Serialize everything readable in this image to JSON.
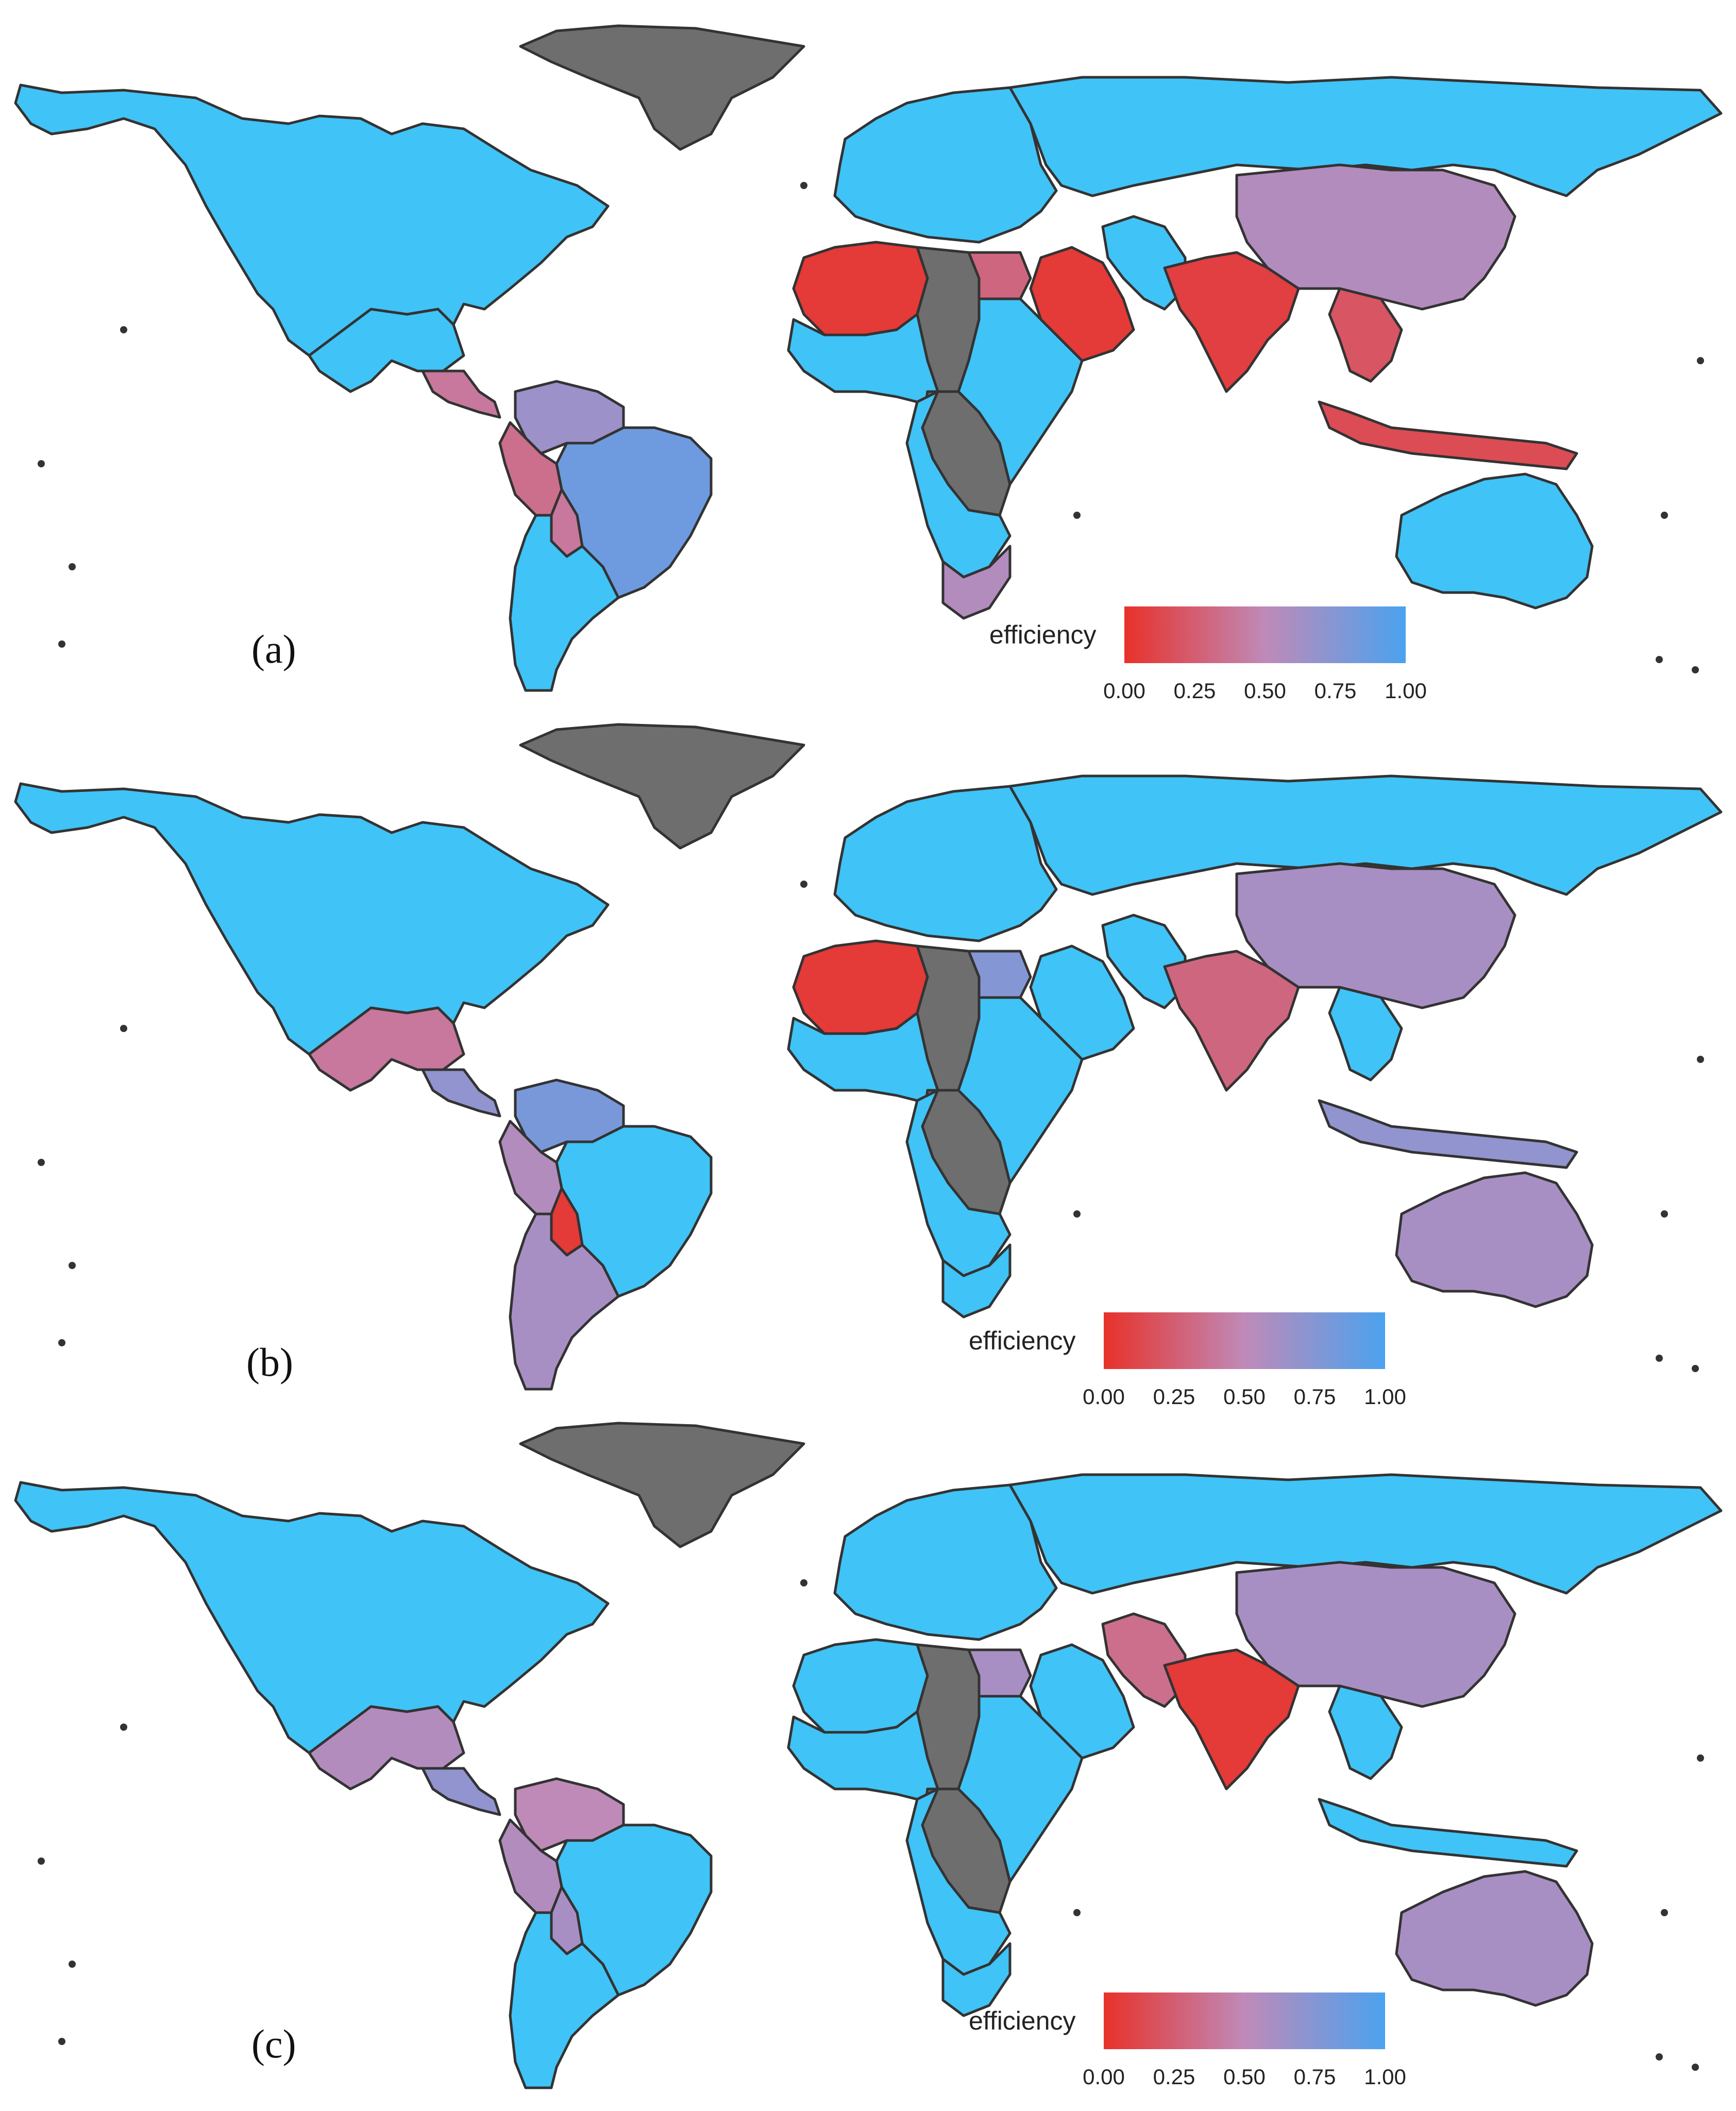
{
  "colors": {
    "no_data": "#6e6e6e",
    "scale_low": "#e8312a",
    "scale_mid": "#bf8ab8",
    "scale_high": "#4ba2ef",
    "full_efficiency": "#40c3f7",
    "outline": "#333333",
    "background": "#ffffff"
  },
  "legend": {
    "title": "efficiency",
    "ticks": [
      "0.00",
      "0.25",
      "0.50",
      "0.75",
      "1.00"
    ],
    "tick_values": [
      0,
      0.25,
      0.5,
      0.75,
      1.0
    ]
  },
  "panels": [
    {
      "label": "(a)",
      "regions": {
        "north_america": 1.0,
        "greenland": null,
        "mexico": 1.0,
        "central_america": 0.4,
        "colombia_venezuela": 0.65,
        "brazil": 0.85,
        "peru": 0.35,
        "bolivia": 0.4,
        "argentina_chile": 1.0,
        "europe": 1.0,
        "russia": 1.0,
        "north_africa_west": 0.05,
        "libya_chad": null,
        "egypt": 0.3,
        "sahel": 1.0,
        "central_africa": null,
        "east_africa": 1.0,
        "southern_africa": 1.0,
        "south_africa": 0.55,
        "arabia": 0.05,
        "iran": 1.0,
        "south_asia": 0.08,
        "china_mongolia": 0.55,
        "southeast_asia": 0.2,
        "indonesia": 0.15,
        "australia": 1.0
      }
    },
    {
      "label": "(b)",
      "regions": {
        "north_america": 1.0,
        "greenland": null,
        "mexico": 0.4,
        "central_america": 0.7,
        "colombia_venezuela": 0.8,
        "brazil": 1.0,
        "peru": 0.55,
        "bolivia": 0.05,
        "argentina_chile": 0.6,
        "europe": 1.0,
        "russia": 1.0,
        "north_africa_west": 0.05,
        "libya_chad": null,
        "egypt": 0.75,
        "sahel": 1.0,
        "central_africa": null,
        "east_africa": 1.0,
        "southern_africa": 1.0,
        "south_africa": 1.0,
        "arabia": 1.0,
        "iran": 1.0,
        "south_asia": 0.3,
        "china_mongolia": 0.6,
        "southeast_asia": 1.0,
        "indonesia": 0.7,
        "australia": 0.6
      }
    },
    {
      "label": "(c)",
      "regions": {
        "north_america": 1.0,
        "greenland": null,
        "mexico": 0.55,
        "central_america": 0.7,
        "colombia_venezuela": 0.5,
        "brazil": 1.0,
        "peru": 0.55,
        "bolivia": 0.6,
        "argentina_chile": 1.0,
        "europe": 1.0,
        "russia": 1.0,
        "north_africa_west": 1.0,
        "libya_chad": null,
        "egypt": 0.6,
        "sahel": 1.0,
        "central_africa": null,
        "east_africa": 1.0,
        "southern_africa": 1.0,
        "south_africa": 1.0,
        "arabia": 1.0,
        "iran": 0.35,
        "south_asia": 0.05,
        "china_mongolia": 0.6,
        "southeast_asia": 1.0,
        "indonesia": 1.0,
        "australia": 0.6
      }
    }
  ]
}
